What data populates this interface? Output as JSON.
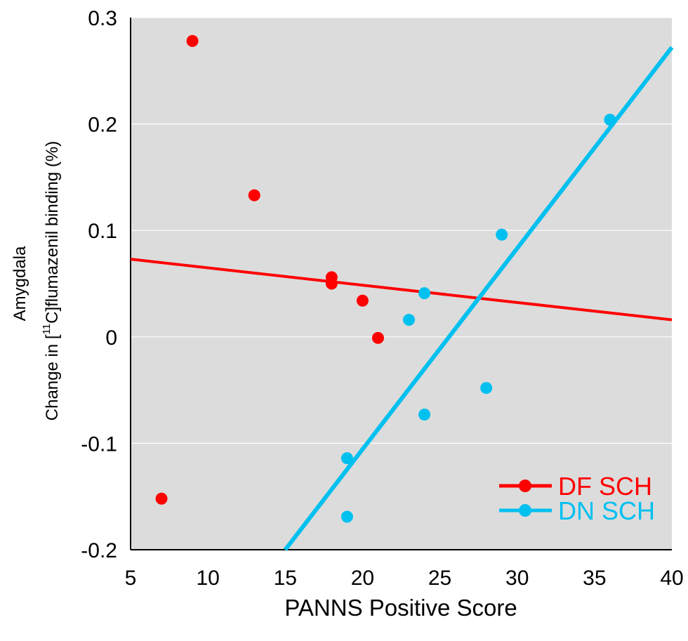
{
  "chart_data": {
    "type": "scatter",
    "title": "",
    "xlabel": "PANNS Positive Score",
    "ylabel": {
      "line1": "Amygdala",
      "line2_prefix": "Change in [",
      "line2_sup": "11",
      "line2_suffix": "C]flumazenil binding (%)"
    },
    "xlim": [
      5,
      40
    ],
    "ylim": [
      -0.2,
      0.3
    ],
    "x_ticks": [
      5,
      10,
      15,
      20,
      25,
      30,
      35,
      40
    ],
    "x_tick_labels": [
      "5",
      "10",
      "15",
      "20",
      "25",
      "30",
      "35",
      "40"
    ],
    "y_ticks": [
      -0.2,
      -0.1,
      0,
      0.1,
      0.2,
      0.3
    ],
    "y_tick_labels": [
      "-0.2",
      "-0.1",
      "0",
      "0.1",
      "0.2",
      "0.3"
    ],
    "grid": "horizontal",
    "legend_position": "bottom-right",
    "series": [
      {
        "name": "DF SCH",
        "color": "#ff0000",
        "points": [
          [
            7,
            -0.152
          ],
          [
            9,
            0.278
          ],
          [
            13,
            0.133
          ],
          [
            18,
            0.056
          ],
          [
            18,
            0.05
          ],
          [
            20,
            0.034
          ],
          [
            21,
            -0.001
          ]
        ],
        "fit_line": [
          [
            5,
            0.073
          ],
          [
            40,
            0.016
          ]
        ]
      },
      {
        "name": "DN SCH",
        "color": "#00c0f0",
        "points": [
          [
            19,
            -0.114
          ],
          [
            19,
            -0.169
          ],
          [
            23,
            0.016
          ],
          [
            24,
            0.041
          ],
          [
            24,
            -0.073
          ],
          [
            28,
            -0.048
          ],
          [
            29,
            0.096
          ],
          [
            36,
            0.204
          ]
        ],
        "fit_line": [
          [
            15,
            -0.2
          ],
          [
            40,
            0.272
          ]
        ]
      }
    ],
    "background": "#dcdcdc"
  }
}
